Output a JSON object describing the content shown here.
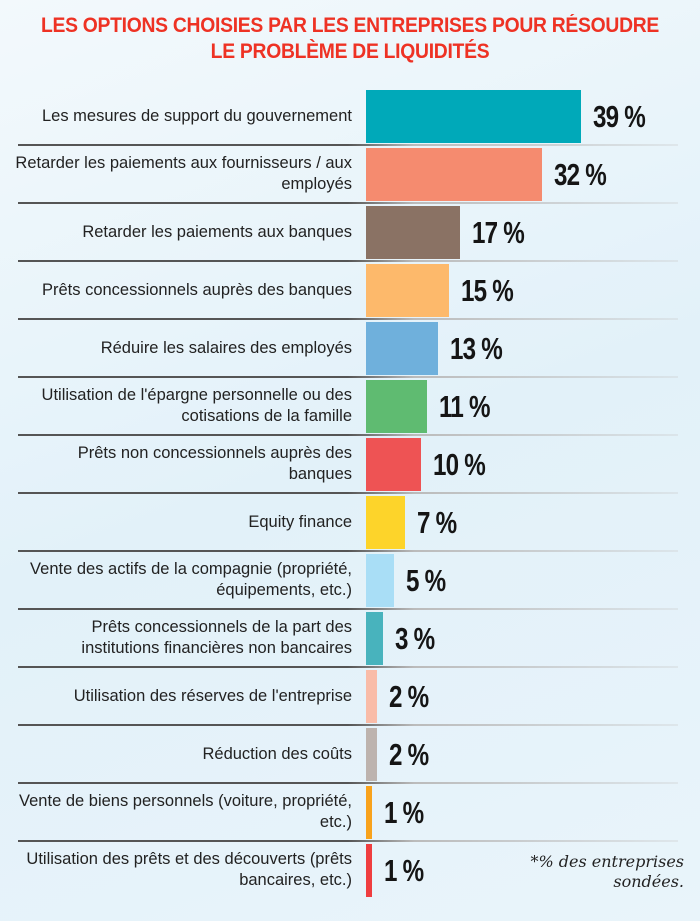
{
  "chart_data": {
    "type": "bar",
    "orientation": "horizontal",
    "title": "LES OPTIONS CHOISIES PAR LES ENTREPRISES POUR RÉSOUDRE LE PROBLÈME DE LIQUIDITÉS",
    "categories": [
      "Les mesures de support du gouvernement",
      "Retarder les paiements aux fournisseurs / aux employés",
      "Retarder les paiements aux banques",
      "Prêts concessionnels auprès des banques",
      "Réduire les salaires des employés",
      "Utilisation de l'épargne personnelle ou des cotisations de la famille",
      "Prêts non concessionnels auprès des banques",
      "Equity finance",
      "Vente des actifs de la compagnie (propriété, équipements, etc.)",
      "Prêts concessionnels de la part des institutions financières non bancaires",
      "Utilisation des réserves de l'entreprise",
      "Réduction des coûts",
      "Vente de biens personnels (voiture, propriété, etc.)",
      "Utilisation des prêts et des découverts (prêts bancaires, etc.)"
    ],
    "values": [
      39,
      32,
      17,
      15,
      13,
      11,
      10,
      7,
      5,
      3,
      2,
      2,
      1,
      1
    ],
    "value_labels": [
      "39 %",
      "32 %",
      "17 %",
      "15 %",
      "13 %",
      "11 %",
      "10 %",
      "7 %",
      "5 %",
      "3 %",
      "2 %",
      "2 %",
      "1 %",
      "1 %"
    ],
    "colors": [
      "#00a9b9",
      "#f58b6f",
      "#8a7264",
      "#fdb96b",
      "#6fb0dc",
      "#5fbb71",
      "#ee5354",
      "#fdd42a",
      "#a9def6",
      "#48b3bd",
      "#f9bca8",
      "#bdb3ae",
      "#f8a21c",
      "#ef3d3f"
    ],
    "xlim": [
      0,
      39
    ],
    "grid": false,
    "footnote": "*% des entreprises sondées."
  }
}
